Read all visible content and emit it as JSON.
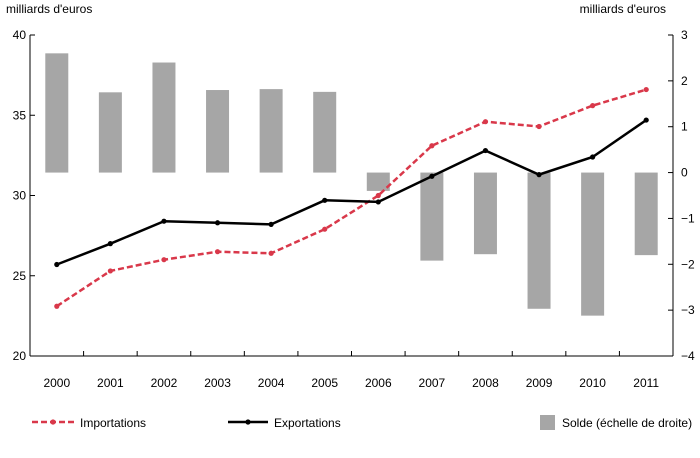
{
  "chart_data": {
    "type": "bar+line",
    "categories": [
      "2000",
      "2001",
      "2002",
      "2003",
      "2004",
      "2005",
      "2006",
      "2007",
      "2008",
      "2009",
      "2010",
      "2011"
    ],
    "left_axis": {
      "label": "milliards d'euros",
      "ylim": [
        20,
        40
      ],
      "ticks": [
        20,
        25,
        30,
        35,
        40
      ]
    },
    "right_axis": {
      "label": "milliards d'euros",
      "ylim": [
        -4,
        3
      ],
      "ticks": [
        -4,
        -3,
        -2,
        -1,
        0,
        1,
        2,
        3
      ]
    },
    "series": [
      {
        "name": "Importations",
        "type": "line",
        "axis": "left",
        "style": "dashed",
        "color": "#d9384a",
        "values": [
          23.1,
          25.3,
          26.0,
          26.5,
          26.4,
          27.9,
          30.0,
          33.1,
          34.6,
          34.3,
          35.6,
          36.6
        ]
      },
      {
        "name": "Exportations",
        "type": "line",
        "axis": "left",
        "style": "solid",
        "color": "#000000",
        "values": [
          25.7,
          27.0,
          28.4,
          28.3,
          28.2,
          29.7,
          29.6,
          31.2,
          32.8,
          31.3,
          32.4,
          34.7
        ]
      },
      {
        "name": "Solde (échelle de droite)",
        "type": "bar",
        "axis": "right",
        "color": "#a6a6a6",
        "values": [
          2.6,
          1.75,
          2.4,
          1.8,
          1.82,
          1.76,
          -0.4,
          -1.92,
          -1.78,
          -2.97,
          -3.12,
          -1.8
        ]
      }
    ],
    "grid": false,
    "legend_position": "bottom"
  }
}
